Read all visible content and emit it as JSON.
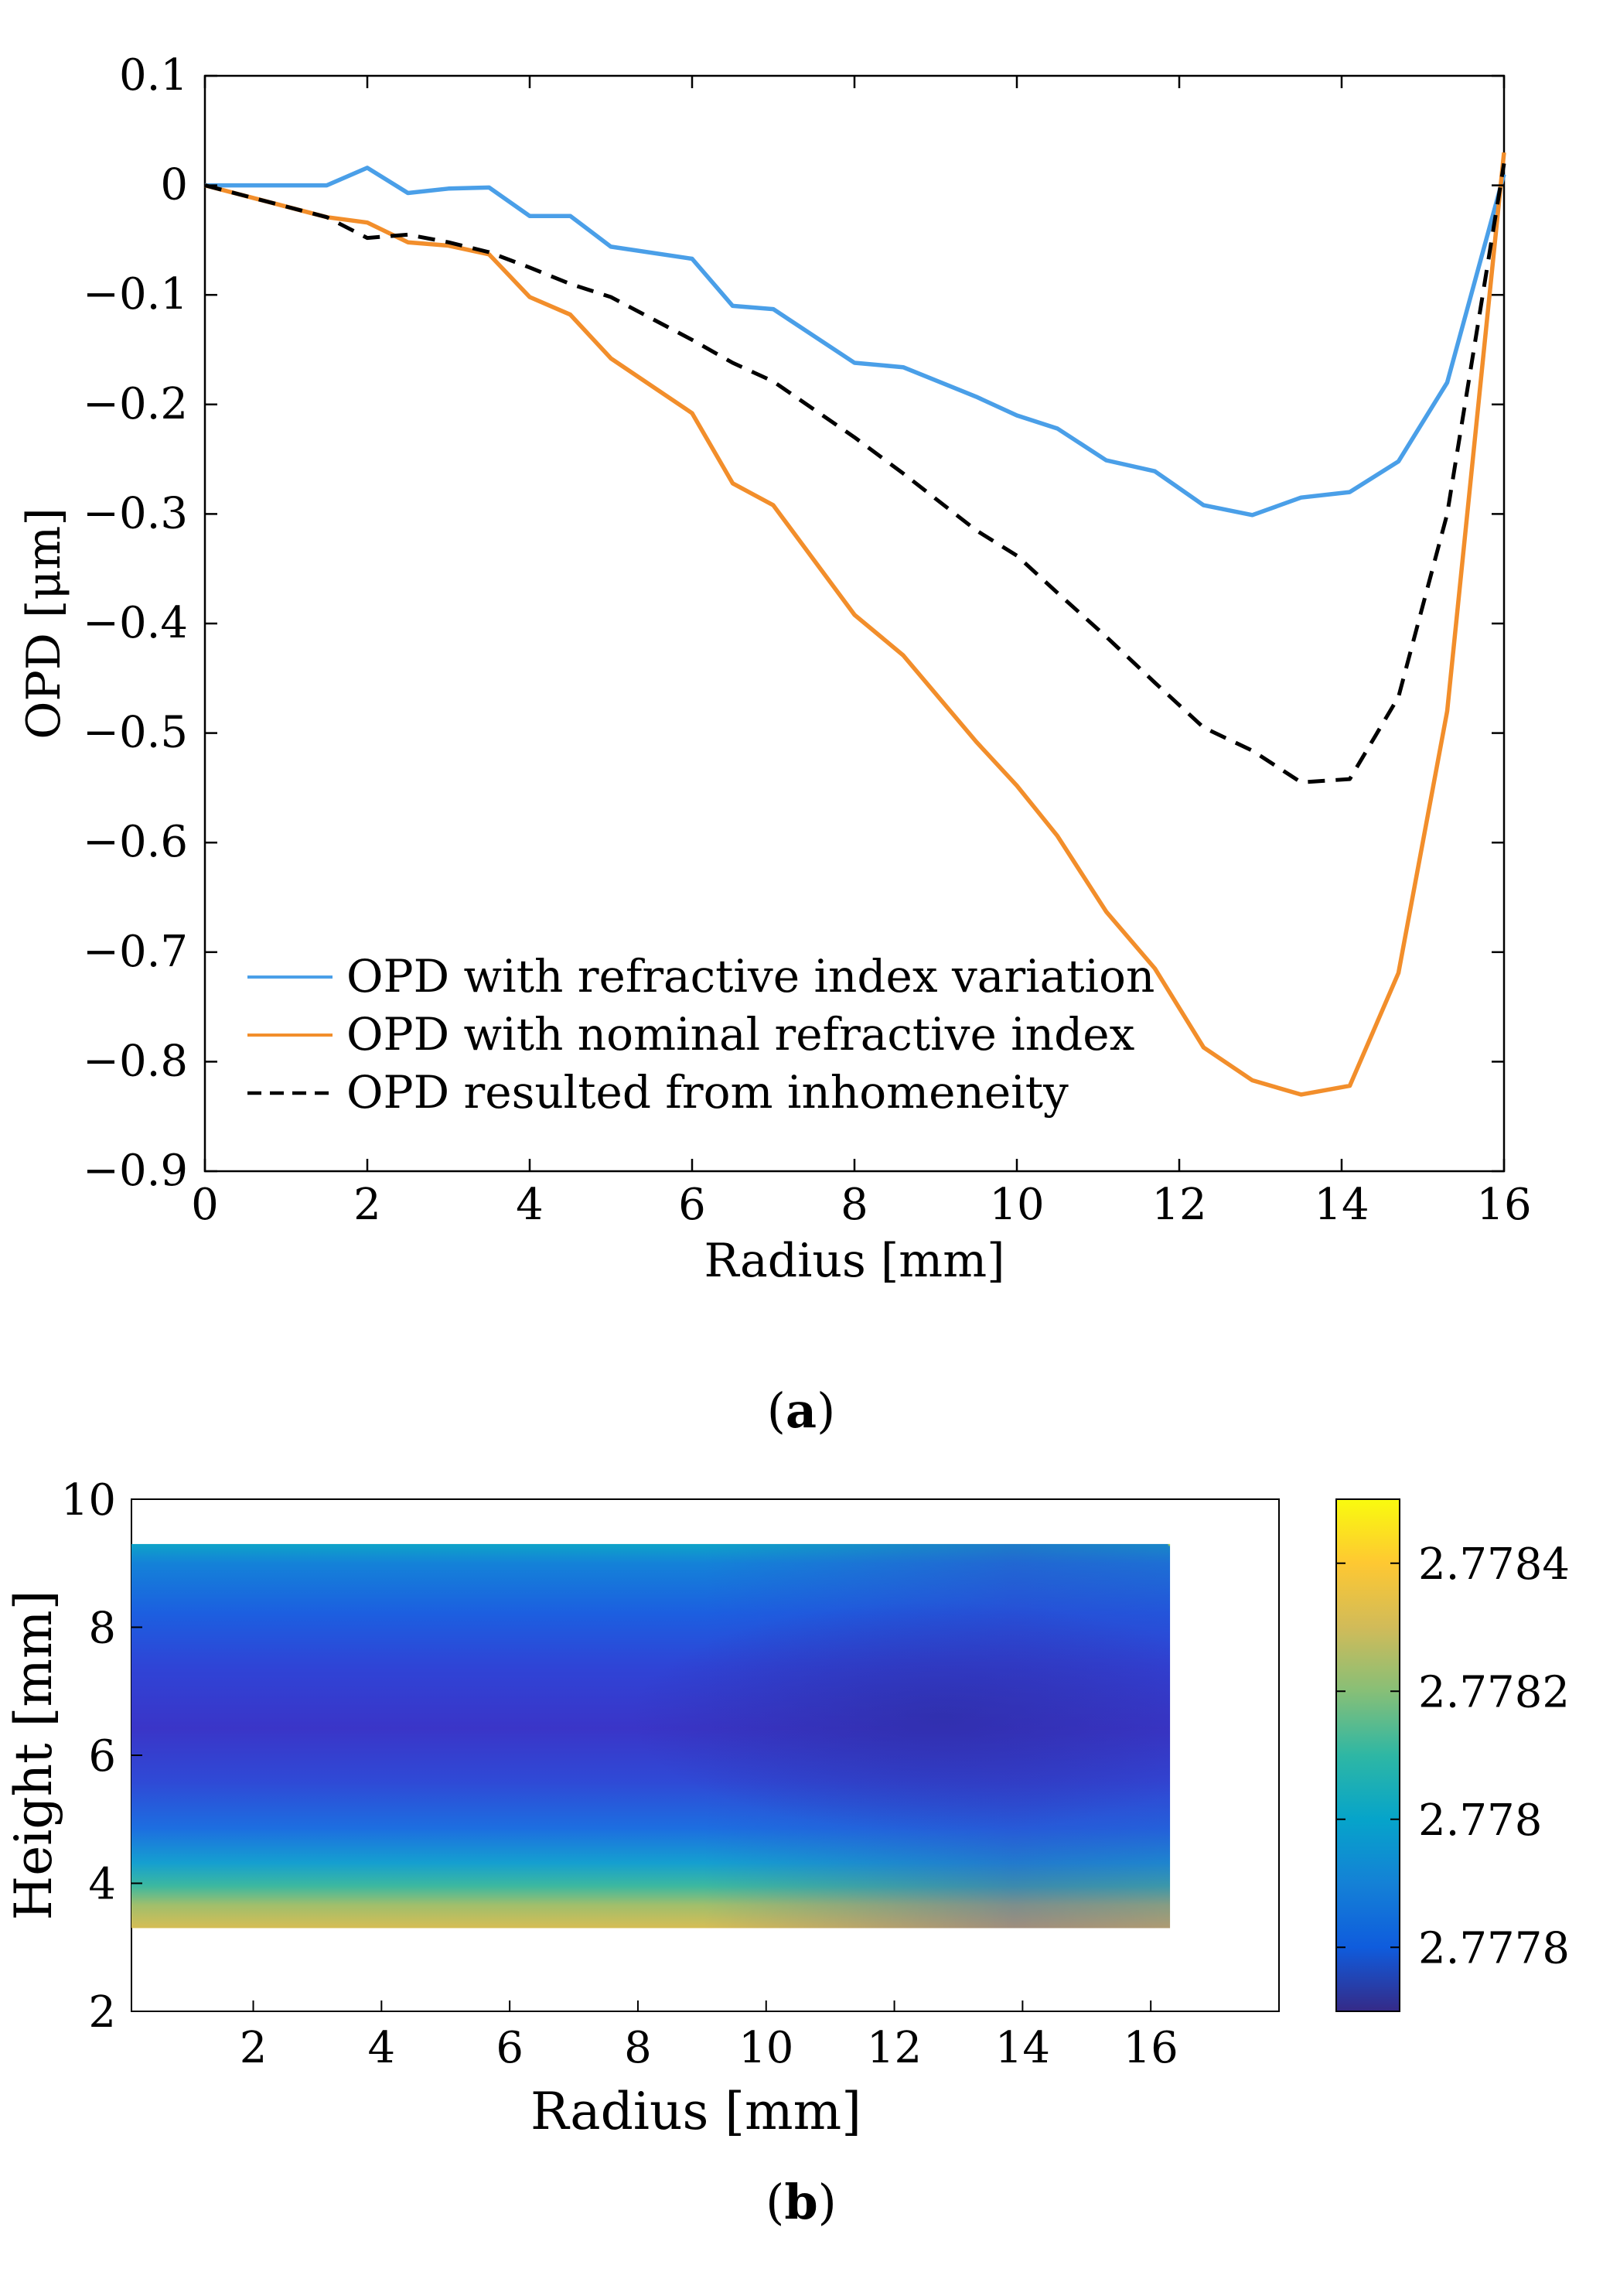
{
  "figure": {
    "panel_a_caption": "(a)",
    "panel_a_caption_letter": "a",
    "panel_b_caption": "(b)",
    "panel_b_caption_letter": "b"
  },
  "chart_data": [
    {
      "type": "line",
      "panel": "a",
      "title": "",
      "xlabel": "Radius [mm]",
      "ylabel": "OPD [μm]",
      "xlim": [
        0,
        16
      ],
      "ylim": [
        -0.9,
        0.1
      ],
      "xticks": [
        0,
        2,
        4,
        6,
        8,
        10,
        12,
        14,
        16
      ],
      "xtick_labels": [
        "0",
        "2",
        "4",
        "6",
        "8",
        "10",
        "12",
        "14",
        "16"
      ],
      "yticks": [
        0.1,
        0,
        -0.1,
        -0.2,
        -0.3,
        -0.4,
        -0.5,
        -0.6,
        -0.7,
        -0.8,
        -0.9
      ],
      "ytick_labels": [
        "0.1",
        "0",
        "−0.1",
        "−0.2",
        "−0.3",
        "−0.4",
        "−0.5",
        "−0.6",
        "−0.7",
        "−0.8",
        "−0.9"
      ],
      "grid": false,
      "legend_position": "bottom-left",
      "series": [
        {
          "name": "OPD with refractive index variation",
          "color": "#4a9fe8",
          "dash": "solid",
          "x": [
            0,
            1.5,
            2.0,
            2.5,
            3.0,
            3.5,
            4.0,
            4.5,
            5.0,
            6.0,
            6.5,
            7.0,
            8.0,
            8.6,
            9.5,
            10.0,
            10.5,
            11.1,
            11.7,
            12.3,
            12.9,
            13.5,
            14.1,
            14.7,
            15.3,
            16.0
          ],
          "y": [
            0,
            0,
            0.016,
            -0.007,
            -0.003,
            -0.002,
            -0.028,
            -0.028,
            -0.056,
            -0.067,
            -0.11,
            -0.113,
            -0.162,
            -0.166,
            -0.193,
            -0.21,
            -0.222,
            -0.251,
            -0.261,
            -0.292,
            -0.301,
            -0.285,
            -0.28,
            -0.252,
            -0.18,
            0.01
          ]
        },
        {
          "name": "OPD with nominal refractive index",
          "color": "#f28e2b",
          "dash": "solid",
          "x": [
            0,
            1.5,
            2.0,
            2.5,
            3.0,
            3.5,
            4.0,
            4.5,
            5.0,
            6.0,
            6.5,
            7.0,
            8.0,
            8.6,
            9.5,
            10.0,
            10.5,
            11.1,
            11.7,
            12.3,
            12.9,
            13.5,
            14.1,
            14.7,
            15.3,
            16.0
          ],
          "y": [
            0,
            -0.029,
            -0.034,
            -0.052,
            -0.055,
            -0.063,
            -0.102,
            -0.118,
            -0.158,
            -0.208,
            -0.272,
            -0.292,
            -0.392,
            -0.429,
            -0.508,
            -0.548,
            -0.594,
            -0.663,
            -0.715,
            -0.787,
            -0.817,
            -0.83,
            -0.822,
            -0.719,
            -0.48,
            0.03
          ]
        },
        {
          "name": "OPD resulted from inhomeneity",
          "color": "#000000",
          "dash": "dashed",
          "x": [
            0,
            1.5,
            2.0,
            2.5,
            3.0,
            3.5,
            4.0,
            4.5,
            5.0,
            6.0,
            6.5,
            7.0,
            8.0,
            8.6,
            9.5,
            10.0,
            10.5,
            11.1,
            11.7,
            12.3,
            12.9,
            13.5,
            14.1,
            14.7,
            15.3,
            16.0
          ],
          "y": [
            0,
            -0.029,
            -0.048,
            -0.045,
            -0.052,
            -0.061,
            -0.075,
            -0.09,
            -0.102,
            -0.141,
            -0.162,
            -0.179,
            -0.23,
            -0.263,
            -0.315,
            -0.338,
            -0.372,
            -0.412,
            -0.454,
            -0.495,
            -0.516,
            -0.545,
            -0.542,
            -0.467,
            -0.3,
            0.02
          ]
        }
      ]
    },
    {
      "type": "heatmap",
      "panel": "b",
      "title": "",
      "xlabel": "Radius [mm]",
      "ylabel": "Height [mm]",
      "xlim": [
        0.1,
        18
      ],
      "ylim": [
        2,
        10
      ],
      "xticks": [
        2,
        4,
        6,
        8,
        10,
        12,
        14,
        16
      ],
      "xtick_labels": [
        "2",
        "4",
        "6",
        "8",
        "10",
        "12",
        "14",
        "16"
      ],
      "yticks": [
        2,
        4,
        6,
        8,
        10
      ],
      "ytick_labels": [
        "2",
        "4",
        "6",
        "8",
        "10"
      ],
      "data_extent": {
        "x": [
          0.1,
          16.3
        ],
        "y": [
          3.3,
          9.3
        ]
      },
      "colorbar": {
        "range": [
          2.7777,
          2.7785
        ],
        "ticks": [
          2.7778,
          2.778,
          2.7782,
          2.7784
        ],
        "tick_labels": [
          "2.7778",
          "2.778",
          "2.7782",
          "2.7784"
        ],
        "colormap": "parula",
        "colors": [
          "#352a87",
          "#0f5cdd",
          "#1481d6",
          "#06a4ca",
          "#2eb7a4",
          "#87bf77",
          "#d1bb59",
          "#fec832",
          "#f9fb0e"
        ]
      },
      "values_description": "refractive index field"
    }
  ]
}
